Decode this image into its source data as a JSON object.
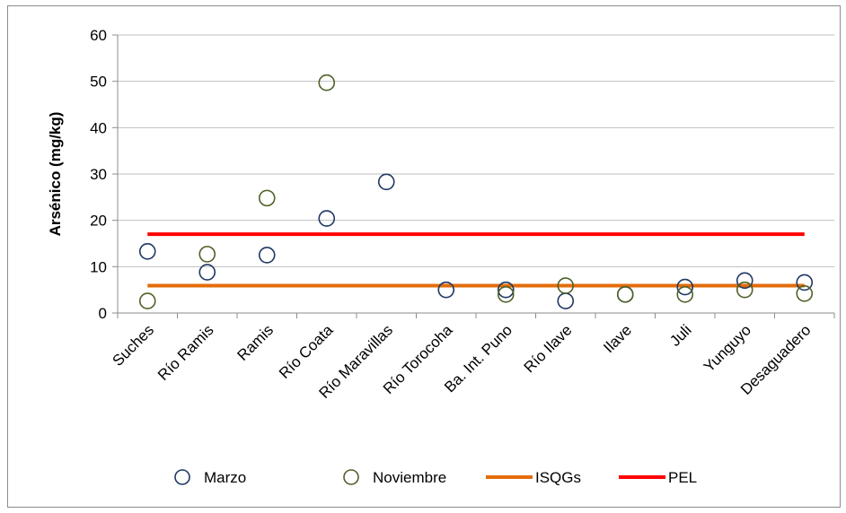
{
  "chart_data": {
    "type": "scatter",
    "ylabel": "Arsénico (mg/kg)",
    "ylim": [
      0,
      60
    ],
    "yticks": [
      "0",
      "10",
      "20",
      "30",
      "40",
      "50",
      "60"
    ],
    "grid": "horizontal",
    "legend_position": "bottom",
    "categories": [
      "Suches",
      "Río Ramis",
      "Ramis",
      "Río Coata",
      "Río Maravillas",
      "Río Torocoha",
      "Ba. Int. Puno",
      "Río Ilave",
      "Ilave",
      "Juli",
      "Yunguyo",
      "Desaguadero"
    ],
    "series": [
      {
        "name": "Marzo",
        "kind": "marker",
        "color": "#1f3864",
        "values": [
          13.3,
          8.8,
          12.5,
          20.4,
          28.3,
          5.0,
          5.0,
          2.6,
          4.0,
          5.6,
          7.0,
          6.6
        ]
      },
      {
        "name": "Noviembre",
        "kind": "marker",
        "color": "#4f6228",
        "values": [
          2.6,
          12.7,
          24.8,
          49.7,
          null,
          null,
          4.0,
          5.9,
          4.0,
          4.0,
          5.0,
          4.2
        ]
      },
      {
        "name": "ISQGs",
        "kind": "line",
        "color": "#e46c0a",
        "values": [
          5.9,
          5.9,
          5.9,
          5.9,
          5.9,
          5.9,
          5.9,
          5.9,
          5.9,
          5.9,
          5.9,
          5.9
        ]
      },
      {
        "name": "PEL",
        "kind": "line",
        "color": "#ff0000",
        "values": [
          17,
          17,
          17,
          17,
          17,
          17,
          17,
          17,
          17,
          17,
          17,
          17
        ]
      }
    ]
  }
}
